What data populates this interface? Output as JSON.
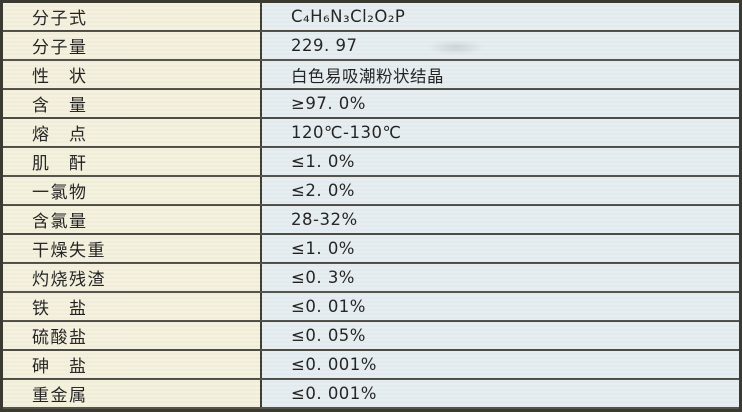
{
  "table": {
    "rows": [
      {
        "label": "分子式",
        "value": "C₄H₆N₃Cl₂O₂P"
      },
      {
        "label": "分子量",
        "value": "229. 97"
      },
      {
        "label": "性　状",
        "value": "白色易吸潮粉状结晶"
      },
      {
        "label": "含　量",
        "value": "≥97. 0%"
      },
      {
        "label": "熔　点",
        "value": "120℃-130℃"
      },
      {
        "label": "肌　酐",
        "value": "≤1. 0%"
      },
      {
        "label": "一氯物",
        "value": "≤2. 0%"
      },
      {
        "label": "含氯量",
        "value": "28-32%"
      },
      {
        "label": "干燥失重",
        "value": "≤1. 0%"
      },
      {
        "label": "灼烧残渣",
        "value": "≤0. 3%"
      },
      {
        "label": "铁　盐",
        "value": "≤0. 01%"
      },
      {
        "label": "硫酸盐",
        "value": "≤0. 05%"
      },
      {
        "label": "砷　盐",
        "value": "≤0. 001%"
      },
      {
        "label": "重金属",
        "value": "≤0. 001%"
      }
    ]
  },
  "colors": {
    "label_bg": "#f4f0dc",
    "value_bg": "#e6edf0",
    "border": "#3a3a31",
    "row_line": "#4c4c44",
    "text": "#1f1f1f"
  }
}
